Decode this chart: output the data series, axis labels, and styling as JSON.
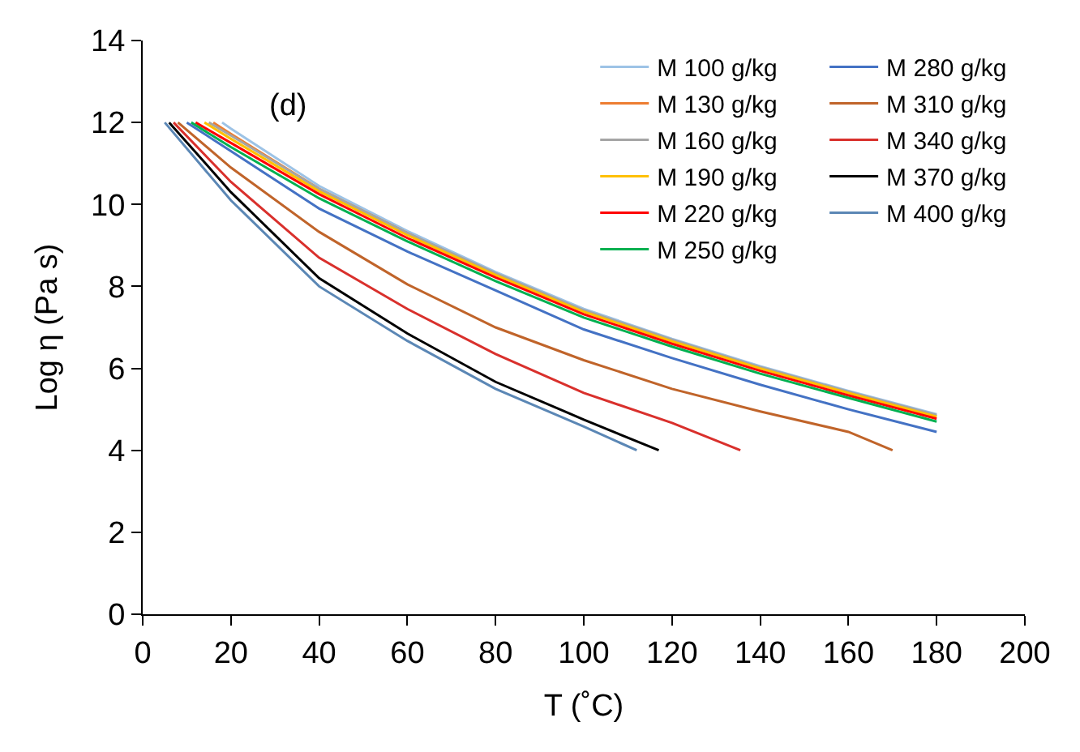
{
  "chart_data": {
    "type": "line",
    "xlabel": "T (˚C)",
    "ylabel": "Log η (Pa s)",
    "xlim": [
      0,
      200
    ],
    "ylim": [
      0,
      14
    ],
    "xticks": [
      0,
      20,
      40,
      60,
      80,
      100,
      120,
      140,
      160,
      180,
      200
    ],
    "yticks": [
      0,
      2,
      4,
      6,
      8,
      10,
      12,
      14
    ],
    "legend": "top right",
    "marker": "none",
    "line_style": "solid",
    "annotations": [
      "(d)"
    ],
    "series": [
      {
        "name": "M 100 g/kg",
        "color": "#9dc3e6",
        "x": [
          18,
          20,
          40,
          60,
          80,
          100,
          120,
          140,
          160,
          180
        ],
        "values": [
          12,
          11.85,
          10.45,
          9.35,
          8.35,
          7.45,
          6.72,
          6.05,
          5.45,
          4.88
        ]
      },
      {
        "name": "M 130 g/kg",
        "color": "#ed7d31",
        "x": [
          16,
          20,
          40,
          60,
          80,
          100,
          120,
          140,
          160,
          180
        ],
        "values": [
          12,
          11.72,
          10.38,
          9.3,
          8.3,
          7.4,
          6.68,
          6.0,
          5.4,
          4.83
        ]
      },
      {
        "name": "M 160 g/kg",
        "color": "#a5a5a5",
        "x": [
          15,
          20,
          40,
          60,
          80,
          100,
          120,
          140,
          160,
          180
        ],
        "values": [
          12,
          11.68,
          10.38,
          9.3,
          8.32,
          7.42,
          6.7,
          6.03,
          5.43,
          4.86
        ]
      },
      {
        "name": "M 190 g/kg",
        "color": "#ffc000",
        "x": [
          14,
          20,
          40,
          60,
          80,
          100,
          120,
          140,
          160,
          180
        ],
        "values": [
          12,
          11.6,
          10.32,
          9.25,
          8.28,
          7.38,
          6.66,
          6.0,
          5.4,
          4.82
        ]
      },
      {
        "name": "M 220 g/kg",
        "color": "#ff0000",
        "x": [
          12,
          20,
          40,
          60,
          80,
          100,
          120,
          140,
          160,
          180
        ],
        "values": [
          12,
          11.5,
          10.25,
          9.18,
          8.22,
          7.32,
          6.6,
          5.94,
          5.34,
          4.77
        ]
      },
      {
        "name": "M 250 g/kg",
        "color": "#00b050",
        "x": [
          11,
          20,
          40,
          60,
          80,
          100,
          120,
          140,
          160,
          180
        ],
        "values": [
          12,
          11.4,
          10.15,
          9.1,
          8.13,
          7.24,
          6.53,
          5.87,
          5.28,
          4.7
        ]
      },
      {
        "name": "M 280 g/kg",
        "color": "#4472c4",
        "x": [
          10,
          20,
          40,
          60,
          80,
          100,
          120,
          140,
          160,
          180
        ],
        "values": [
          12,
          11.3,
          9.9,
          8.85,
          7.9,
          6.95,
          6.25,
          5.6,
          5.0,
          4.45
        ]
      },
      {
        "name": "M 310 g/kg",
        "color": "#c0642a",
        "x": [
          8,
          20,
          40,
          60,
          80,
          100,
          120,
          140,
          160,
          170
        ],
        "values": [
          12,
          10.9,
          9.33,
          8.05,
          7.0,
          6.2,
          5.5,
          4.95,
          4.45,
          4.0
        ]
      },
      {
        "name": "M 340 g/kg",
        "color": "#d9302c",
        "x": [
          7,
          20,
          40,
          60,
          80,
          100,
          120,
          135.5
        ],
        "values": [
          12,
          10.55,
          8.7,
          7.45,
          6.35,
          5.4,
          4.67,
          4.0
        ]
      },
      {
        "name": "M 370 g/kg",
        "color": "#000000",
        "x": [
          6,
          20,
          40,
          60,
          80,
          100,
          117
        ],
        "values": [
          12,
          10.3,
          8.2,
          6.85,
          5.67,
          4.75,
          4.0
        ]
      },
      {
        "name": "M 400 g/kg",
        "color": "#5b87b5",
        "x": [
          5,
          20,
          40,
          60,
          80,
          100,
          112
        ],
        "values": [
          12,
          10.1,
          8.0,
          6.67,
          5.5,
          4.58,
          4.0
        ]
      }
    ]
  }
}
